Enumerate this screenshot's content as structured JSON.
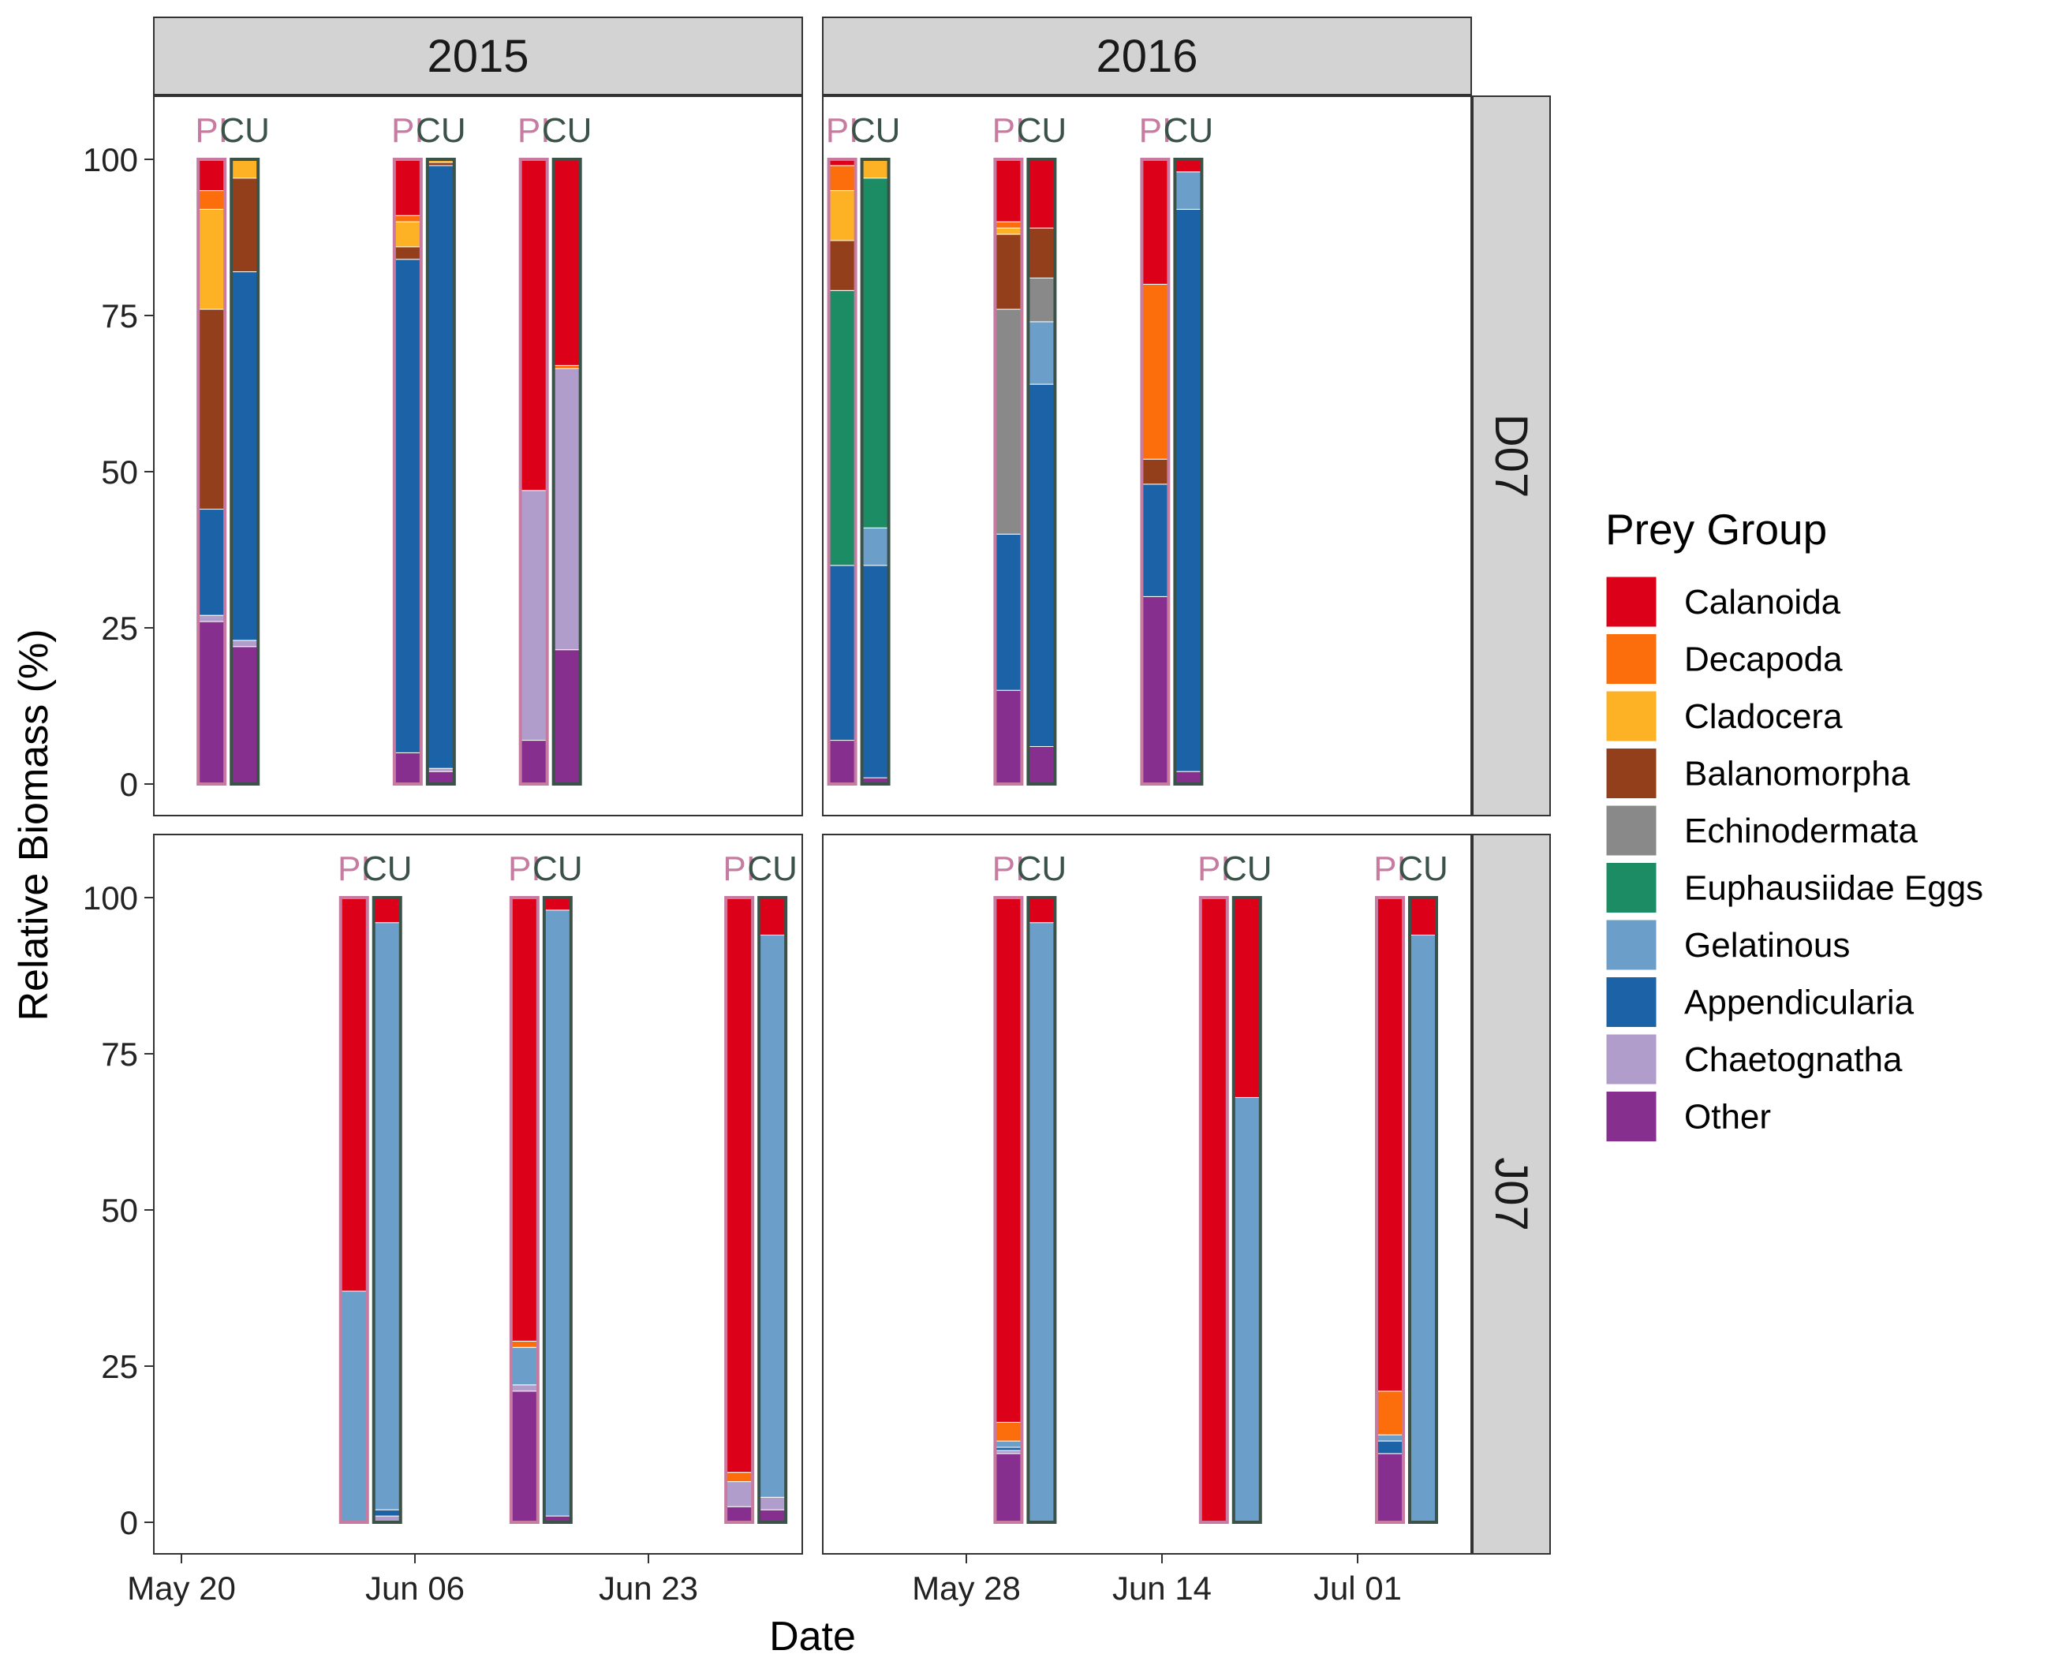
{
  "chart_data": {
    "type": "bar",
    "stacking": "percent",
    "xlabel": "Date",
    "ylabel": "Relative Biomass (%)",
    "ylim": [
      0,
      110
    ],
    "yticks": [
      0,
      25,
      50,
      75,
      100
    ],
    "grid": false,
    "facet_columns": [
      "2015",
      "2016"
    ],
    "facet_rows": [
      "D07",
      "J07"
    ],
    "column_xticks": [
      [
        "May 20",
        "Jun 06",
        "Jun 23"
      ],
      [
        "May 28",
        "Jun 14",
        "Jul 01"
      ]
    ],
    "fish_labels": [
      "PI",
      "CU"
    ],
    "fish_outline_colors": {
      "PI": "#c87ba0",
      "CU": "#3a5248"
    },
    "legend": {
      "title": "Prey Group",
      "position": "right",
      "items": [
        {
          "name": "Calanoida",
          "color": "#dc0019"
        },
        {
          "name": "Decapoda",
          "color": "#fc6e0c"
        },
        {
          "name": "Cladocera",
          "color": "#fdb124"
        },
        {
          "name": "Balanomorpha",
          "color": "#943f1b"
        },
        {
          "name": "Echinodermata",
          "color": "#898989"
        },
        {
          "name": "Euphausiidae Eggs",
          "color": "#1c8c64"
        },
        {
          "name": "Gelatinous",
          "color": "#6b9fc9"
        },
        {
          "name": "Appendicularia",
          "color": "#1b62a6"
        },
        {
          "name": "Chaetognatha",
          "color": "#b09dcc"
        },
        {
          "name": "Other",
          "color": "#862f8e"
        }
      ]
    },
    "panels": [
      {
        "year": "2015",
        "station": "D07",
        "groups": [
          {
            "tick": 0.2,
            "bars": [
              {
                "fish": "PI",
                "values": [
                  5,
                  3,
                  16,
                  32,
                  0,
                  0,
                  0,
                  17,
                  1,
                  26
                ]
              },
              {
                "fish": "CU",
                "values": [
                  0,
                  0,
                  3,
                  15,
                  0,
                  0,
                  0,
                  59,
                  1,
                  22
                ]
              }
            ]
          },
          {
            "tick": 1.04,
            "bars": [
              {
                "fish": "PI",
                "values": [
                  9,
                  1,
                  4,
                  2,
                  0,
                  0,
                  0,
                  79,
                  0,
                  5
                ]
              },
              {
                "fish": "CU",
                "values": [
                  0,
                  0,
                  0.5,
                  0.5,
                  0,
                  0,
                  0,
                  96.5,
                  0.5,
                  2
                ]
              }
            ]
          },
          {
            "tick": 1.58,
            "bars": [
              {
                "fish": "PI",
                "values": [
                  53,
                  0,
                  0,
                  0,
                  0,
                  0,
                  0,
                  0,
                  40,
                  7
                ]
              },
              {
                "fish": "CU",
                "values": [
                  33,
                  0.5,
                  0,
                  0,
                  0,
                  0,
                  0,
                  0,
                  45,
                  21.5
                ]
              }
            ]
          }
        ]
      },
      {
        "year": "2016",
        "station": "D07",
        "groups": [
          {
            "tick": -0.55,
            "bars": [
              {
                "fish": "PI",
                "values": [
                  1,
                  4,
                  8,
                  8,
                  0,
                  44,
                  0,
                  28,
                  0,
                  7
                ]
              },
              {
                "fish": "CU",
                "values": [
                  0,
                  0,
                  3,
                  0,
                  0,
                  56,
                  6,
                  34,
                  0,
                  1
                ]
              }
            ]
          },
          {
            "tick": 0.3,
            "bars": [
              {
                "fish": "PI",
                "values": [
                  10,
                  1,
                  1,
                  12,
                  36,
                  0,
                  0,
                  25,
                  0,
                  15
                ]
              },
              {
                "fish": "CU",
                "values": [
                  11,
                  0,
                  0,
                  8,
                  7,
                  0,
                  10,
                  58,
                  0,
                  6
                ]
              }
            ]
          },
          {
            "tick": 1.05,
            "bars": [
              {
                "fish": "PI",
                "values": [
                  20,
                  28,
                  0,
                  4,
                  0,
                  0,
                  0,
                  18,
                  0,
                  30
                ]
              },
              {
                "fish": "CU",
                "values": [
                  2,
                  0,
                  0,
                  0,
                  0,
                  0,
                  6,
                  90,
                  0,
                  2
                ]
              }
            ]
          }
        ]
      },
      {
        "year": "2015",
        "station": "J07",
        "groups": [
          {
            "tick": 0.81,
            "bars": [
              {
                "fish": "PI",
                "values": [
                  63,
                  0,
                  0,
                  0,
                  0,
                  0,
                  37,
                  0,
                  0,
                  0
                ]
              },
              {
                "fish": "CU",
                "values": [
                  4,
                  0,
                  0,
                  0,
                  0,
                  0,
                  94,
                  1,
                  1,
                  0
                ]
              }
            ]
          },
          {
            "tick": 1.54,
            "bars": [
              {
                "fish": "PI",
                "values": [
                  71,
                  1,
                  0,
                  0,
                  0,
                  0,
                  6,
                  0,
                  1,
                  21
                ]
              },
              {
                "fish": "CU",
                "values": [
                  2,
                  0,
                  0,
                  0,
                  0,
                  0,
                  97,
                  0,
                  0,
                  1
                ]
              }
            ]
          },
          {
            "tick": 2.46,
            "bars": [
              {
                "fish": "PI",
                "values": [
                  92,
                  1.5,
                  0,
                  0,
                  0,
                  0,
                  0,
                  0,
                  4,
                  2.5
                ]
              },
              {
                "fish": "CU",
                "values": [
                  6,
                  0,
                  0,
                  0,
                  0,
                  0,
                  90,
                  0,
                  2,
                  2
                ]
              }
            ]
          }
        ]
      },
      {
        "year": "2016",
        "station": "J07",
        "groups": [
          {
            "tick": 0.3,
            "bars": [
              {
                "fish": "PI",
                "values": [
                  84,
                  3,
                  0,
                  0,
                  0,
                  0,
                  1,
                  0.5,
                  0.5,
                  11
                ]
              },
              {
                "fish": "CU",
                "values": [
                  4,
                  0,
                  0,
                  0,
                  0,
                  0,
                  96,
                  0,
                  0,
                  0
                ]
              }
            ]
          },
          {
            "tick": 1.35,
            "bars": [
              {
                "fish": "PI",
                "values": [
                  100,
                  0,
                  0,
                  0,
                  0,
                  0,
                  0,
                  0,
                  0,
                  0
                ]
              },
              {
                "fish": "CU",
                "values": [
                  32,
                  0,
                  0,
                  0,
                  0,
                  0,
                  68,
                  0,
                  0,
                  0
                ]
              }
            ]
          },
          {
            "tick": 2.25,
            "bars": [
              {
                "fish": "PI",
                "values": [
                  79,
                  7,
                  0,
                  0,
                  0,
                  0,
                  1,
                  2,
                  0,
                  11
                ]
              },
              {
                "fish": "CU",
                "values": [
                  6,
                  0,
                  0,
                  0,
                  0,
                  0,
                  94,
                  0,
                  0,
                  0
                ]
              }
            ]
          }
        ]
      }
    ]
  }
}
